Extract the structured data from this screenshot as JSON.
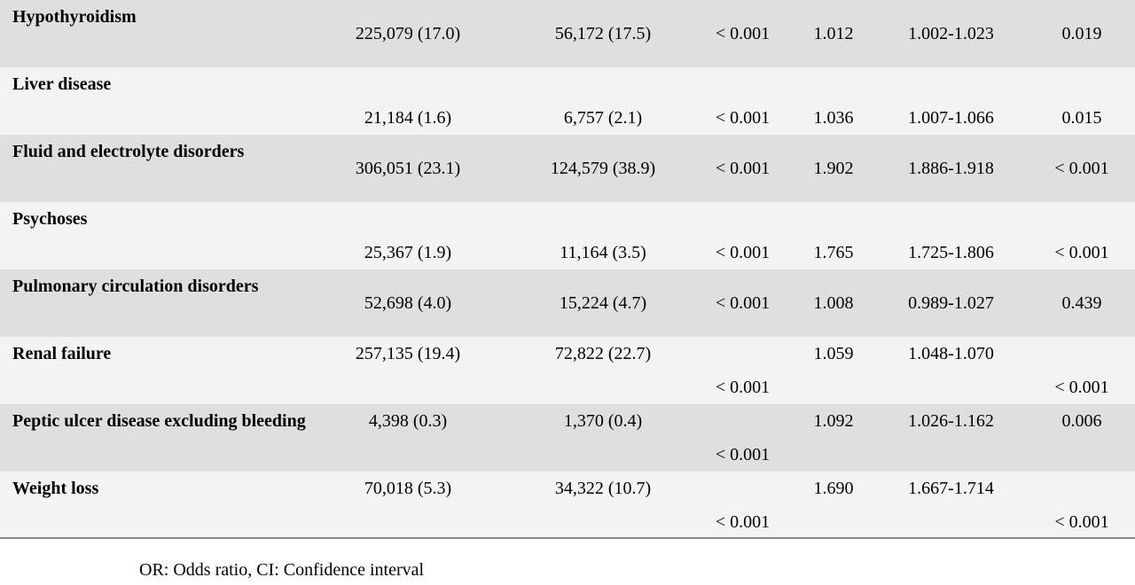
{
  "rows": [
    {
      "label": "Hypothyroidism",
      "c1": "225,079 (17.0)",
      "c2": "56,172 (17.5)",
      "p1": "< 0.001",
      "or": "1.012",
      "ci": "1.002-1.023",
      "p2": "0.019"
    },
    {
      "label": "Liver disease",
      "c1": "21,184 (1.6)",
      "c2": "6,757 (2.1)",
      "p1": "< 0.001",
      "or": "1.036",
      "ci": "1.007-1.066",
      "p2": "0.015"
    },
    {
      "label": "Fluid and electrolyte disorders",
      "c1": "306,051 (23.1)",
      "c2": "124,579 (38.9)",
      "p1": "< 0.001",
      "or": "1.902",
      "ci": "1.886-1.918",
      "p2": "< 0.001"
    },
    {
      "label": "Psychoses",
      "c1": "25,367 (1.9)",
      "c2": "11,164 (3.5)",
      "p1": "< 0.001",
      "or": "1.765",
      "ci": "1.725-1.806",
      "p2": "< 0.001"
    },
    {
      "label": "Pulmonary circulation disorders",
      "c1": "52,698 (4.0)",
      "c2": "15,224 (4.7)",
      "p1": "< 0.001",
      "or": "1.008",
      "ci": "0.989-1.027",
      "p2": "0.439"
    },
    {
      "label": "Renal failure",
      "c1": "257,135 (19.4)",
      "c2": "72,822 (22.7)",
      "p1": "< 0.001",
      "or": "1.059",
      "ci": "1.048-1.070",
      "p2": "< 0.001"
    },
    {
      "label": "Peptic ulcer disease excluding bleeding",
      "c1": "4,398 (0.3)",
      "c2": "1,370 (0.4)",
      "p1": "< 0.001",
      "or": "1.092",
      "ci": "1.026-1.162",
      "p2": "0.006"
    },
    {
      "label": "Weight loss",
      "c1": "70,018 (5.3)",
      "c2": "34,322 (10.7)",
      "p1": "< 0.001",
      "or": "1.690",
      "ci": "1.667-1.714",
      "p2": "< 0.001"
    }
  ],
  "footnote": "OR: Odds ratio, CI: Confidence interval"
}
